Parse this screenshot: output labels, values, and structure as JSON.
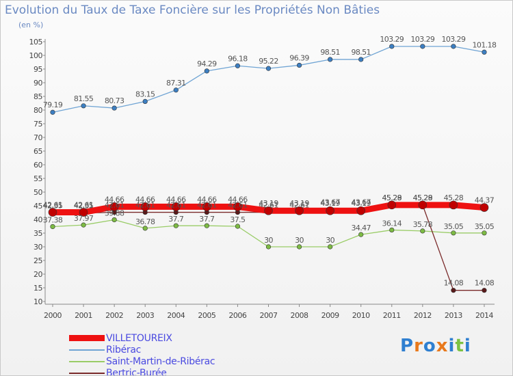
{
  "title": "Evolution du Taux de Taxe Foncière sur les Propriétés Non Bâties",
  "unit_label": "(en %)",
  "logo": {
    "text": "Proxiti",
    "colors": [
      "#2f7fd0",
      "#e8791c",
      "#2f7fd0",
      "#e8791c",
      "#2f7fd0",
      "#7cc242",
      "#2f7fd0"
    ]
  },
  "chart_data": {
    "type": "line",
    "title": "Evolution du Taux de Taxe Foncière sur les Propriétés Non Bâties",
    "ylabel": "(en %)",
    "xlabel": "",
    "x": [
      "2000",
      "2001",
      "2002",
      "2003",
      "2004",
      "2005",
      "2006",
      "2007",
      "2008",
      "2009",
      "2010",
      "2011",
      "2012",
      "2013",
      "2014"
    ],
    "ylim": [
      10,
      105
    ],
    "yticks": [
      10,
      15,
      20,
      25,
      30,
      35,
      40,
      45,
      50,
      55,
      60,
      65,
      70,
      75,
      80,
      85,
      90,
      95,
      100,
      105
    ],
    "grid": false,
    "legend_position": "bottom-left",
    "series": [
      {
        "name": "VILLETOUREIX",
        "color": "#ee1111",
        "values": [
          42.61,
          42.61,
          44.66,
          44.66,
          44.66,
          44.66,
          44.66,
          43.19,
          43.19,
          43.19,
          43.19,
          45.29,
          45.29,
          45.28,
          44.37
        ],
        "labels": [
          "42.61",
          "42.61",
          "44.66",
          "44.66",
          "44.66",
          "44.66",
          "44.66",
          "43.19",
          "43.19",
          "43.19",
          "43.19",
          "45.29",
          "45.29",
          "45.28",
          "44.37"
        ]
      },
      {
        "name": "Ribérac",
        "color": "#6fa4d4",
        "values": [
          79.19,
          81.55,
          80.73,
          83.15,
          87.31,
          94.29,
          96.18,
          95.22,
          96.39,
          98.51,
          98.51,
          103.29,
          103.29,
          103.29,
          101.18
        ],
        "labels": [
          "79.19",
          "81.55",
          "80.73",
          "83.15",
          "87.31",
          "94.29",
          "96.18",
          "95.22",
          "96.39",
          "98.51",
          "98.51",
          "103.29",
          "103.29",
          "103.29",
          "101.18"
        ]
      },
      {
        "name": "Saint-Martin-de-Ribérac",
        "color": "#99cc66",
        "values": [
          37.38,
          37.97,
          39.88,
          36.78,
          37.7,
          37.7,
          37.5,
          30,
          30,
          30,
          34.47,
          36.14,
          35.78,
          35.05,
          35.05
        ],
        "labels": [
          "37.38",
          "37.97",
          "39.88",
          "36.78",
          "37.7",
          "37.7",
          "37.5",
          "30",
          "30",
          "30",
          "34.47",
          "36.14",
          "35.78",
          "35.05",
          "35.05"
        ]
      },
      {
        "name": "Bertric-Burée",
        "color": "#7a2a2a",
        "values": [
          42.35,
          42.35,
          42.61,
          42.61,
          42.61,
          42.61,
          42.61,
          42.61,
          42.61,
          43.67,
          43.67,
          45.28,
          45.28,
          14.08,
          14.08
        ],
        "labels": [
          "42.35",
          "42.35",
          "42.61",
          "42.61",
          "42.61",
          "42.61",
          "42.61",
          "42.61",
          "42.61",
          "43.67",
          "43.67",
          "45.28",
          "45.28",
          "14.08",
          "14.08"
        ]
      }
    ]
  }
}
